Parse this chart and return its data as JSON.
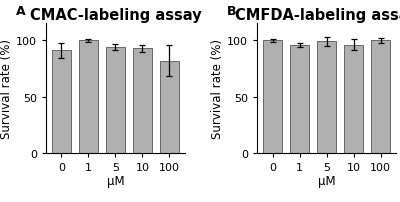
{
  "panel_A": {
    "title": "CMAC-labeling assay",
    "categories": [
      "0",
      "1",
      "5",
      "10",
      "100"
    ],
    "values": [
      91,
      100,
      94,
      93,
      82
    ],
    "errors": [
      7,
      1.5,
      3,
      3,
      14
    ],
    "bar_color": "#b0b0b0",
    "bar_edge_color": "#555555"
  },
  "panel_B": {
    "title": "CMFDA-labeling assay",
    "categories": [
      "0",
      "1",
      "5",
      "10",
      "100"
    ],
    "values": [
      100,
      96,
      99,
      96,
      100
    ],
    "errors": [
      1.5,
      2,
      4,
      5,
      2
    ],
    "bar_color": "#b0b0b0",
    "bar_edge_color": "#555555"
  },
  "xlabel": "μM",
  "ylabel": "Survival rate (%)",
  "ylim": [
    0,
    115
  ],
  "yticks": [
    0,
    50,
    100
  ],
  "label_A": "A",
  "label_B": "B",
  "bg_color": "#ffffff",
  "title_fontsize": 10.5,
  "axis_fontsize": 8.5,
  "tick_fontsize": 8,
  "label_fontsize": 9
}
